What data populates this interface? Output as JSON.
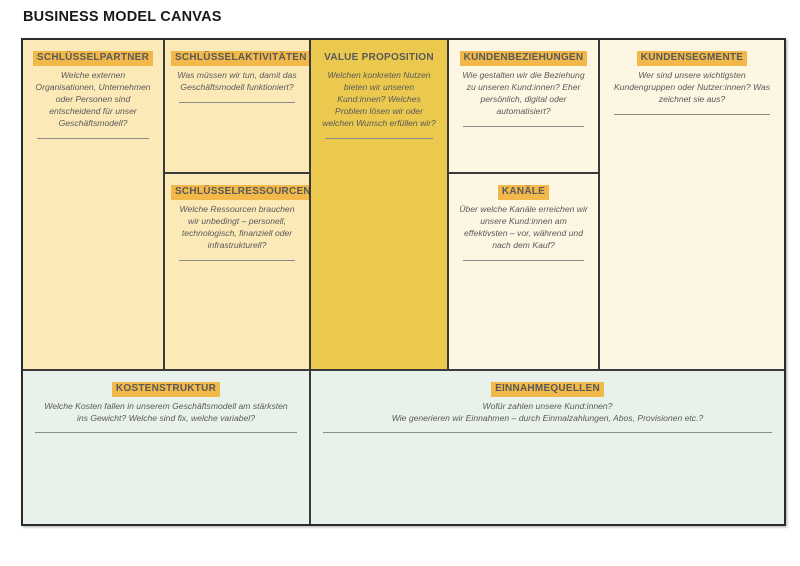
{
  "title": "BUSINESS MODEL CANVAS",
  "colors": {
    "light-yellow": "#FBE9B7",
    "gold": "#EBC94F",
    "cream": "#FDF6E2",
    "green": "#E9F1EB",
    "highlight": "#F2B94A",
    "text": "#595959",
    "rule": "#8C8C8C",
    "grid-line": "#3a3a3a"
  },
  "sections": {
    "key_partners": {
      "label": "SCHLÜSSELPARTNER",
      "question": "Welche externen Organisationen, Unternehmen oder Personen sind entscheidend für unser Geschäftsmodell?"
    },
    "key_activities": {
      "label": "SCHLÜSSELAKTIVITÄTEN",
      "question": "Was müssen wir tun, damit das Geschäftsmodell funktioniert?"
    },
    "key_resources": {
      "label": "SCHLÜSSELRESSOURCEN",
      "question": "Welche Ressourcen brauchen wir unbedingt – personell, technologisch, finanziell oder infrastrukturell?"
    },
    "value_proposition": {
      "label": "VALUE PROPOSITION",
      "question": "Welchen konkreten Nutzen bieten wir unseren Kund:innen? Welches Problem lösen wir oder welchen Wunsch erfüllen wir?"
    },
    "customer_relationships": {
      "label": "KUNDENBEZIEHUNGEN",
      "question": "Wie gestalten wir die Beziehung zu unseren Kund:innen? Eher persönlich, digital oder automatisiert?"
    },
    "channels": {
      "label": "KANÄLE",
      "question": "Über welche Kanäle erreichen wir unsere Kund:innen am effektivsten – vor, während und nach dem Kauf?"
    },
    "customer_segments": {
      "label": "KUNDENSEGMENTE",
      "question": "Wer sind unsere wichtigsten Kundengruppen oder Nutzer:innen? Was zeichnet sie aus?"
    },
    "cost_structure": {
      "label": "KOSTENSTRUKTUR",
      "question": "Welche Kosten fallen in unserem Geschäftsmodell am stärksten ins Gewicht? Welche sind fix, welche variabel?"
    },
    "revenue_streams": {
      "label": "EINNAHMEQUELLEN",
      "question": "Wofür zahlen unsere Kund:innen?\nWie generieren wir Einnahmen – durch Einmalzahlungen, Abos, Provisionen etc.?"
    }
  }
}
